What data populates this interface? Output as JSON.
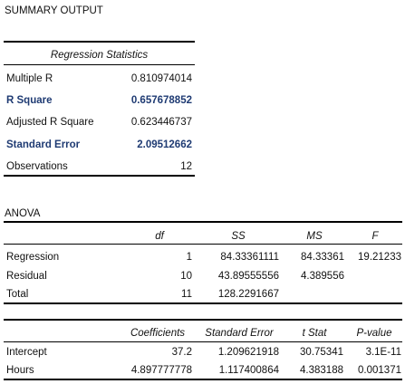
{
  "title": "SUMMARY OUTPUT",
  "regression_statistics": {
    "header": "Regression Statistics",
    "rows": [
      {
        "label": "Multiple R",
        "value": "0.810974014"
      },
      {
        "label": "R Square",
        "value": "0.657678852"
      },
      {
        "label": "Adjusted R Square",
        "value": "0.623446737"
      },
      {
        "label": "Standard Error",
        "value": "2.09512662"
      },
      {
        "label": "Observations",
        "value": "12"
      }
    ]
  },
  "anova": {
    "title": "ANOVA",
    "headers": [
      "df",
      "SS",
      "MS",
      "F"
    ],
    "rows": [
      {
        "label": "Regression",
        "df": "1",
        "ss": "84.33361111",
        "ms": "84.33361",
        "f": "19.21233"
      },
      {
        "label": "Residual",
        "df": "10",
        "ss": "43.89555556",
        "ms": "4.389556",
        "f": ""
      },
      {
        "label": "Total",
        "df": "11",
        "ss": "128.2291667",
        "ms": "",
        "f": ""
      }
    ]
  },
  "coefficients": {
    "headers": [
      "Coefficients",
      "Standard Error",
      "t Stat",
      "P-value"
    ],
    "rows": [
      {
        "label": "Intercept",
        "coef": "37.2",
        "se": "1.209621918",
        "t": "30.75341",
        "p": "3.1E-11"
      },
      {
        "label": "Hours",
        "coef": "4.897777778",
        "se": "1.117400864",
        "t": "4.383188",
        "p": "0.001371"
      }
    ]
  }
}
